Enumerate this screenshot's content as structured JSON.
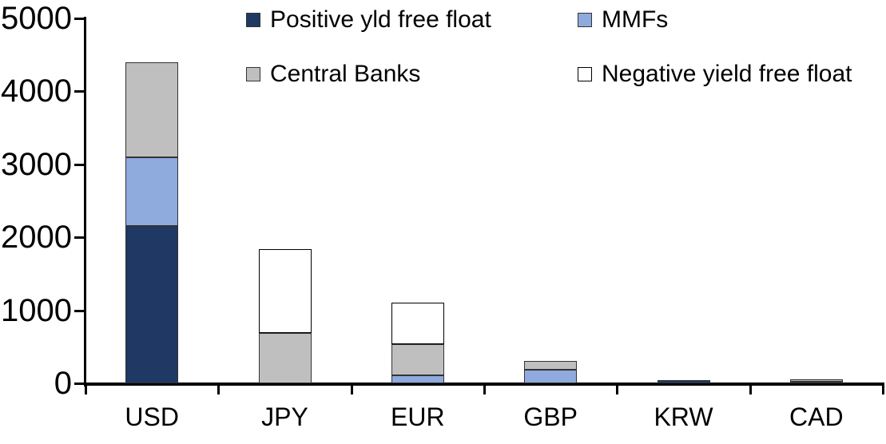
{
  "chart_data": {
    "type": "bar",
    "stacked": true,
    "categories": [
      "USD",
      "JPY",
      "EUR",
      "GBP",
      "KRW",
      "CAD"
    ],
    "series": [
      {
        "name": "Positive yld free float",
        "color": "#1F3864",
        "values": [
          2150,
          0,
          0,
          0,
          40,
          25
        ]
      },
      {
        "name": "MMFs",
        "color": "#8FAADC",
        "values": [
          950,
          0,
          110,
          190,
          0,
          0
        ]
      },
      {
        "name": "Central Banks",
        "color": "#BFBFBF",
        "values": [
          1300,
          690,
          430,
          120,
          0,
          35
        ]
      },
      {
        "name": "Negative yield free float",
        "color": "#FFFFFF",
        "values": [
          0,
          1150,
          560,
          0,
          0,
          0
        ]
      }
    ],
    "totals": {
      "USD": 4400,
      "JPY": 1840,
      "EUR": 1100,
      "GBP": 310,
      "KRW": 40,
      "CAD": 60
    },
    "ylim": [
      0,
      5000
    ],
    "yticks": [
      0,
      1000,
      2000,
      3000,
      4000,
      5000
    ],
    "grid": false,
    "legend_position": "top",
    "legend_rows": [
      [
        "Positive yld free float",
        "MMFs"
      ],
      [
        "Central Banks",
        "Negative yield free float"
      ]
    ]
  },
  "colors": {
    "axis": "#000000",
    "background": "#FFFFFF",
    "bar_border": "#333333",
    "white_segment_border": "#000000"
  }
}
